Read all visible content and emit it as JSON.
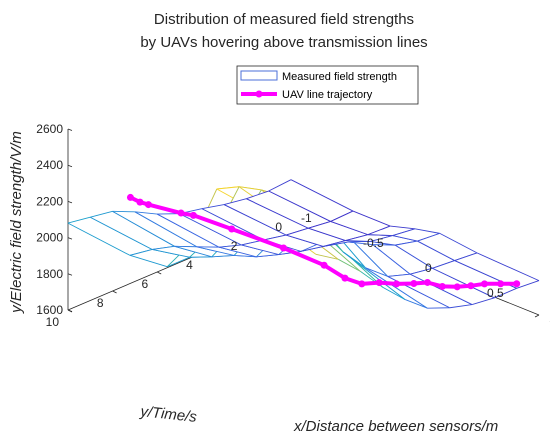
{
  "chart_data": {
    "type": "surface",
    "title": [
      "Distribution of measured field strengths",
      "by UAVs hovering above transmission lines"
    ],
    "xlabel": "x/Distance between sensors/m",
    "ylabel": "y/Time/s",
    "zlabel": "y/Electric field strength/V/m",
    "x_ticks": [
      "-1",
      "-0.5",
      "0",
      "0.5",
      "1"
    ],
    "y_ticks": [
      "0",
      "2",
      "4",
      "6",
      "8",
      "10"
    ],
    "z_ticks": [
      "1600",
      "1800",
      "2000",
      "2200",
      "2400",
      "2600"
    ],
    "xlim": [
      -1,
      1
    ],
    "ylim": [
      0,
      10
    ],
    "zlim": [
      1600,
      2600
    ],
    "grid": false,
    "legend_position": "top",
    "series": [
      {
        "name": "Measured field strength",
        "kind": "mesh"
      },
      {
        "name": "UAV line trajectory",
        "kind": "line",
        "color": "#ff00ff"
      }
    ],
    "x_grid": [
      -1,
      -0.5,
      -0.2,
      0,
      0.2,
      0.5,
      1
    ],
    "y_grid": [
      0,
      1,
      2,
      3,
      4,
      5,
      6,
      7,
      8,
      9,
      10
    ],
    "z_surface": [
      [
        1795,
        1760,
        1760,
        1800,
        1830,
        1805,
        1790
      ],
      [
        1785,
        1755,
        1765,
        1815,
        1840,
        1815,
        1800
      ],
      [
        1795,
        1770,
        1785,
        1835,
        1870,
        1825,
        1800
      ],
      [
        1815,
        1785,
        1805,
        1885,
        1925,
        1845,
        1815
      ],
      [
        1845,
        1810,
        1830,
        1945,
        2010,
        1885,
        1850
      ],
      [
        1870,
        1835,
        1865,
        2040,
        2140,
        1985,
        1900
      ],
      [
        1920,
        1875,
        1905,
        2095,
        2275,
        2125,
        2000
      ],
      [
        1985,
        1930,
        1965,
        2165,
        2400,
        2300,
        2120
      ],
      [
        2040,
        1985,
        2010,
        2210,
        2490,
        2420,
        2260
      ],
      [
        2060,
        2020,
        2060,
        2240,
        2560,
        2500,
        2380
      ],
      [
        2080,
        2040,
        2060,
        2250,
        2600,
        2570,
        2460
      ]
    ],
    "trajectory": [
      [
        -1,
        7.2,
        2075
      ],
      [
        -0.95,
        7.05,
        2055
      ],
      [
        -0.9,
        6.95,
        2050
      ],
      [
        -0.7,
        6.6,
        2040
      ],
      [
        -0.6,
        6.6,
        2055
      ],
      [
        -0.3,
        6.55,
        2060
      ],
      [
        0.1,
        6.45,
        2060
      ],
      [
        0.4,
        6.3,
        2040
      ],
      [
        0.55,
        6.2,
        2005
      ],
      [
        0.65,
        6.0,
        1990
      ],
      [
        0.7,
        5.5,
        1985
      ],
      [
        0.75,
        5.0,
        1965
      ],
      [
        0.8,
        4.5,
        1955
      ],
      [
        0.82,
        4.0,
        1940
      ],
      [
        0.85,
        3.5,
        1900
      ],
      [
        0.88,
        3.0,
        1880
      ],
      [
        0.9,
        2.5,
        1865
      ],
      [
        0.92,
        2.0,
        1855
      ],
      [
        0.96,
        1.5,
        1840
      ],
      [
        1.0,
        1.0,
        1825
      ]
    ],
    "colormap": [
      "#3c2fc8",
      "#3a6fe6",
      "#16a6c9",
      "#3fc08f",
      "#c8c447",
      "#f9d62a"
    ]
  }
}
